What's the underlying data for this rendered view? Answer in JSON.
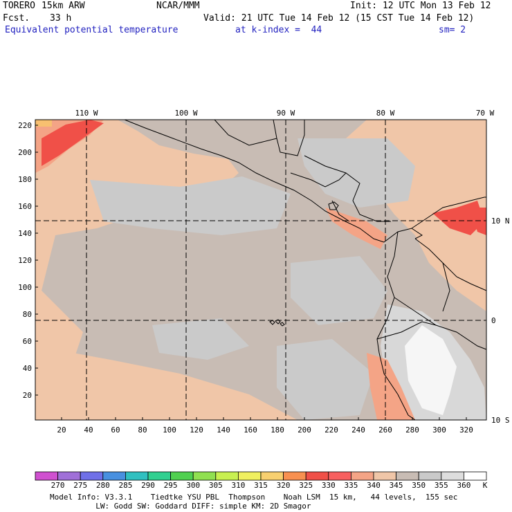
{
  "header": {
    "model": "TORERO",
    "resolution": "15km ARW",
    "center": "NCAR/MMM",
    "init": "Init: 12 UTC Mon 13 Feb 12",
    "fcst_label": "Fcst.",
    "fcst_value": "33 h",
    "valid": "Valid: 21 UTC Tue 14 Feb 12 (15 CST Tue 14 Feb 12)",
    "field": "Equivalent potential temperature",
    "level": "at k-index =  44",
    "smoothing": "sm= 2"
  },
  "map": {
    "top_lon_labels": [
      "110 W",
      "100 W",
      "90 W",
      "80 W",
      "70 W"
    ],
    "right_lat_labels": [
      "10 N",
      "0",
      "10 S"
    ],
    "y_ticks": [
      "220",
      "200",
      "180",
      "160",
      "140",
      "120",
      "100",
      "80",
      "60",
      "40",
      "20"
    ],
    "x_ticks": [
      "20",
      "40",
      "60",
      "80",
      "100",
      "120",
      "140",
      "160",
      "180",
      "200",
      "220",
      "240",
      "260",
      "280",
      "300",
      "320"
    ],
    "colors": {
      "ocean_base": "#c8bcb4",
      "light_gray": "#cacaca",
      "mid_gray": "#d8d8d8",
      "warm_light": "#f0c6a8",
      "warm": "#f4a486",
      "hot": "#f0584a",
      "very_hot": "#e84040",
      "andes_white": "#f6f6f6",
      "coast": "#000000",
      "grid": "#000000"
    }
  },
  "colorbar": {
    "values": [
      "270",
      "275",
      "280",
      "285",
      "290",
      "295",
      "300",
      "305",
      "310",
      "315",
      "320",
      "325",
      "330",
      "335",
      "340",
      "345",
      "350",
      "355",
      "360"
    ],
    "unit": "K",
    "colors": [
      "#d050d0",
      "#a070d8",
      "#7070e8",
      "#4890e0",
      "#30c0c0",
      "#30d090",
      "#50d050",
      "#90e050",
      "#c8f050",
      "#f0f060",
      "#f8d070",
      "#f89050",
      "#f05048",
      "#f86060",
      "#f4a486",
      "#f0c6a8",
      "#c8bcb4",
      "#cacaca",
      "#dedede",
      "#ffffff"
    ]
  },
  "footer": {
    "line1": "Model Info: V3.3.1    Tiedtke YSU PBL  Thompson    Noah LSM  15 km,   44 levels,  155 sec",
    "line2": "          LW: Godd SW: Goddard DIFF: simple KM: 2D Smagor"
  }
}
